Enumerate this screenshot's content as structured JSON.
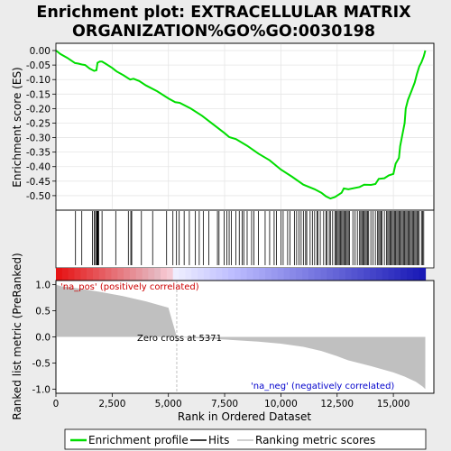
{
  "title_line1": "Enrichment plot: EXTRACELLULAR MATRIX",
  "title_line2": "ORGANIZATION%GO%GO:0030198",
  "chart_data": {
    "type": "line",
    "x_label": "Rank in Ordered Dataset",
    "es_ylabel": "Enrichment score (ES)",
    "metric_ylabel": "Ranked list metric (PreRanked)",
    "x_range": [
      0,
      16800
    ],
    "es_range": [
      -0.55,
      0.025
    ],
    "metric_range": [
      -1.08,
      1.08
    ],
    "x_ticks": [
      0,
      2500,
      5000,
      7500,
      10000,
      12500,
      15000
    ],
    "x_tick_labels": [
      "0",
      "2,500",
      "5,000",
      "7,500",
      "10,000",
      "12,500",
      "15,000"
    ],
    "es_ticks": [
      0.0,
      -0.05,
      -0.1,
      -0.15,
      -0.2,
      -0.25,
      -0.3,
      -0.35,
      -0.4,
      -0.45,
      -0.5
    ],
    "es_tick_labels": [
      "0.00",
      "-0.05",
      "-0.10",
      "-0.15",
      "-0.20",
      "-0.25",
      "-0.30",
      "-0.35",
      "-0.40",
      "-0.45",
      "-0.50"
    ],
    "metric_ticks": [
      1.0,
      0.5,
      0.0,
      -0.5,
      -1.0
    ],
    "metric_tick_labels": [
      "1.0",
      "0.5",
      "0.0",
      "-0.5",
      "-1.0"
    ],
    "enrichment_profile": [
      [
        0,
        0.0
      ],
      [
        200,
        -0.012
      ],
      [
        500,
        -0.025
      ],
      [
        850,
        -0.043
      ],
      [
        1000,
        -0.045
      ],
      [
        1150,
        -0.048
      ],
      [
        1300,
        -0.05
      ],
      [
        1500,
        -0.062
      ],
      [
        1700,
        -0.07
      ],
      [
        1800,
        -0.068
      ],
      [
        1850,
        -0.042
      ],
      [
        1950,
        -0.038
      ],
      [
        2050,
        -0.038
      ],
      [
        2200,
        -0.045
      ],
      [
        2500,
        -0.06
      ],
      [
        2700,
        -0.072
      ],
      [
        3000,
        -0.085
      ],
      [
        3300,
        -0.1
      ],
      [
        3450,
        -0.097
      ],
      [
        3700,
        -0.105
      ],
      [
        4000,
        -0.12
      ],
      [
        4500,
        -0.14
      ],
      [
        5000,
        -0.165
      ],
      [
        5300,
        -0.178
      ],
      [
        5500,
        -0.18
      ],
      [
        6000,
        -0.2
      ],
      [
        6500,
        -0.225
      ],
      [
        7000,
        -0.255
      ],
      [
        7500,
        -0.285
      ],
      [
        7700,
        -0.298
      ],
      [
        8000,
        -0.305
      ],
      [
        8500,
        -0.328
      ],
      [
        9000,
        -0.355
      ],
      [
        9500,
        -0.378
      ],
      [
        10000,
        -0.41
      ],
      [
        10500,
        -0.435
      ],
      [
        11000,
        -0.462
      ],
      [
        11500,
        -0.478
      ],
      [
        11800,
        -0.49
      ],
      [
        12000,
        -0.502
      ],
      [
        12200,
        -0.51
      ],
      [
        12400,
        -0.505
      ],
      [
        12700,
        -0.49
      ],
      [
        12800,
        -0.475
      ],
      [
        13000,
        -0.478
      ],
      [
        13500,
        -0.47
      ],
      [
        13700,
        -0.462
      ],
      [
        14000,
        -0.463
      ],
      [
        14200,
        -0.46
      ],
      [
        14350,
        -0.442
      ],
      [
        14600,
        -0.44
      ],
      [
        14800,
        -0.43
      ],
      [
        15000,
        -0.425
      ],
      [
        15100,
        -0.39
      ],
      [
        15250,
        -0.37
      ],
      [
        15300,
        -0.33
      ],
      [
        15400,
        -0.29
      ],
      [
        15500,
        -0.25
      ],
      [
        15550,
        -0.2
      ],
      [
        15650,
        -0.17
      ],
      [
        15800,
        -0.14
      ],
      [
        15950,
        -0.11
      ],
      [
        16050,
        -0.08
      ],
      [
        16150,
        -0.055
      ],
      [
        16250,
        -0.04
      ],
      [
        16350,
        -0.02
      ],
      [
        16420,
        0.0
      ]
    ],
    "hits": [
      870,
      1150,
      1620,
      1700,
      1760,
      1810,
      1830,
      1850,
      1870,
      1900,
      2050,
      2660,
      3220,
      3330,
      3370,
      3800,
      4300,
      4920,
      5200,
      5360,
      5480,
      5700,
      5930,
      6200,
      6370,
      6550,
      6800,
      7180,
      7250,
      7480,
      7600,
      7700,
      7800,
      8000,
      8150,
      8280,
      8350,
      8500,
      8700,
      8800,
      9000,
      9300,
      9500,
      9700,
      9800,
      10000,
      10100,
      10300,
      10400,
      10600,
      10700,
      10800,
      10900,
      11000,
      11100,
      11150,
      11300,
      11400,
      11500,
      11600,
      11650,
      11750,
      11900,
      12000,
      12050,
      12150,
      12200,
      12300,
      12400,
      12450,
      12500,
      12550,
      12600,
      12650,
      12700,
      12750,
      12800,
      12850,
      12900,
      12950,
      13000,
      13050,
      13200,
      13300,
      13400,
      13500,
      13550,
      13600,
      13650,
      13700,
      13750,
      13800,
      13850,
      13900,
      14000,
      14100,
      14200,
      14300,
      14350,
      14400,
      14450,
      14500,
      14600,
      14700,
      14750,
      14800,
      14850,
      14900,
      14950,
      15000,
      15050,
      15100,
      15150,
      15200,
      15250,
      15300,
      15350,
      15400,
      15450,
      15500,
      15550,
      15600,
      15650,
      15700,
      15750,
      15800,
      15850,
      15900,
      15950,
      16000,
      16050,
      16100,
      16150,
      16250,
      16300,
      16350
    ],
    "ranked_metric": [
      [
        0,
        1.0
      ],
      [
        250,
        0.97
      ],
      [
        1000,
        0.93
      ],
      [
        2000,
        0.86
      ],
      [
        3000,
        0.78
      ],
      [
        4000,
        0.68
      ],
      [
        5000,
        0.56
      ],
      [
        5371,
        0.0
      ],
      [
        6000,
        -0.02
      ],
      [
        7500,
        -0.05
      ],
      [
        9000,
        -0.09
      ],
      [
        10000,
        -0.13
      ],
      [
        11000,
        -0.19
      ],
      [
        11800,
        -0.27
      ],
      [
        12500,
        -0.37
      ],
      [
        13000,
        -0.45
      ],
      [
        14000,
        -0.56
      ],
      [
        15000,
        -0.68
      ],
      [
        15500,
        -0.76
      ],
      [
        16000,
        -0.86
      ],
      [
        16300,
        -0.95
      ],
      [
        16420,
        -1.0
      ]
    ],
    "zero_cross_label": "Zero cross at 5371",
    "pos_label": "'na_pos' (positively correlated)",
    "neg_label": "'na_neg' (negatively correlated)",
    "legend": [
      "Enrichment profile",
      "Hits",
      "Ranking metric scores"
    ],
    "colors": {
      "profile": "#00dd00",
      "hits": "#000000",
      "metric_fill": "#c0c0c0",
      "pos_text": "#cc0000",
      "neg_text": "#0000cc",
      "zero_line": "#c0c0c0"
    }
  }
}
